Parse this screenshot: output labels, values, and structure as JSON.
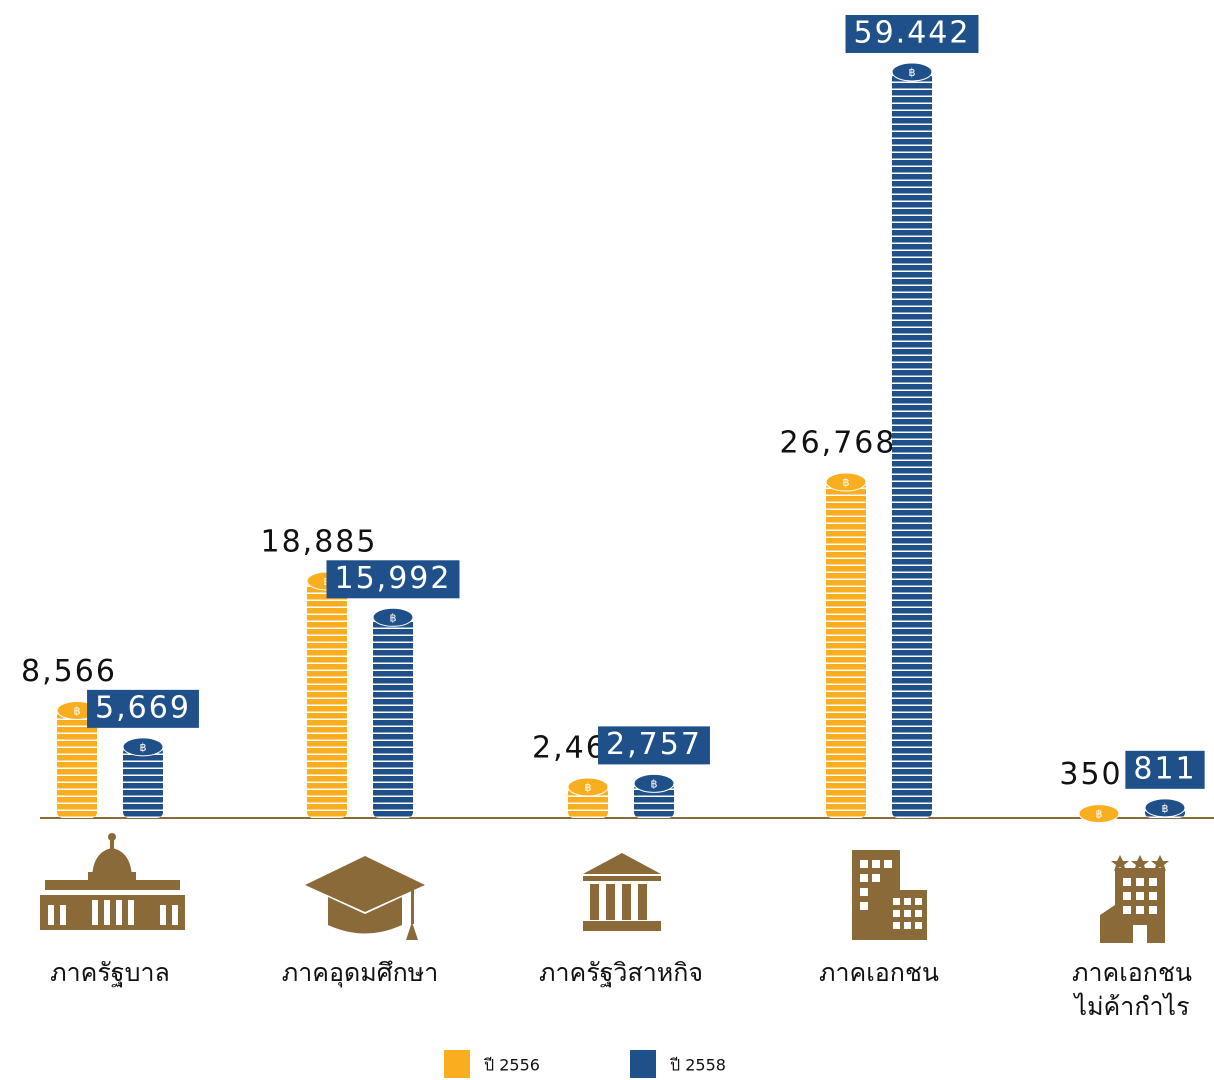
{
  "chart_data": {
    "type": "bar",
    "categories": [
      "ภาครัฐบาล",
      "ภาคอุดมศึกษา",
      "ภาครัฐวิสาหกิจ",
      "ภาคเอกชน",
      "ภาคเอกชน\nไม่ค้ากำไร"
    ],
    "series": [
      {
        "name": "ปี 2556",
        "color": "#f9ae1f",
        "values": [
          8566,
          18885,
          2469,
          26768,
          350
        ],
        "value_labels": [
          "8,566",
          "18,885",
          "2,469",
          "26,768",
          "350"
        ]
      },
      {
        "name": "ปี 2558",
        "color": "#1f5089",
        "values": [
          5669,
          15992,
          2757,
          59442,
          811
        ],
        "value_labels": [
          "5,669",
          "15,992",
          "2,757",
          "59.442",
          "811"
        ]
      }
    ],
    "legend": "bottom"
  }
}
